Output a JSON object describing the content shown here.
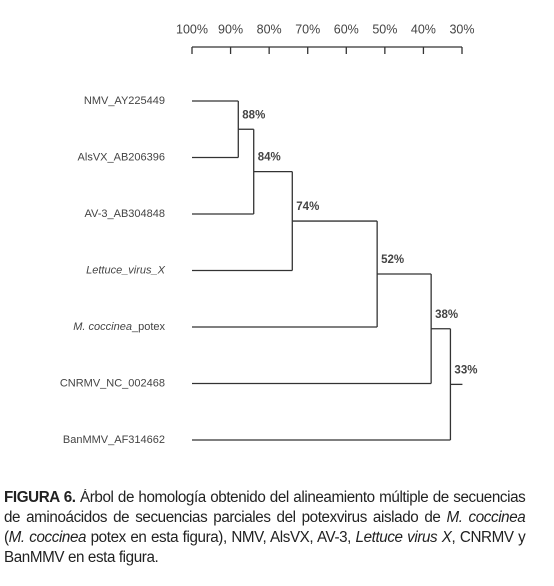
{
  "chart_data": {
    "type": "dendrogram",
    "xlim": [
      100,
      30
    ],
    "xticks": [
      {
        "value": 100,
        "label": "100%"
      },
      {
        "value": 90,
        "label": "90%"
      },
      {
        "value": 80,
        "label": "80%"
      },
      {
        "value": 70,
        "label": "70%"
      },
      {
        "value": 60,
        "label": "60%"
      },
      {
        "value": 50,
        "label": "50%"
      },
      {
        "value": 40,
        "label": "40%"
      },
      {
        "value": 30,
        "label": "30%"
      }
    ],
    "leaves": [
      {
        "text": "NMV_AY225449"
      },
      {
        "text": "AlsVX_AB206396"
      },
      {
        "text": "AV-3_AB304848"
      },
      {
        "text": "Lettuce_virus_X",
        "italic": true
      },
      {
        "parts": [
          {
            "text": "M. coccinea",
            "italic": true
          },
          {
            "text": "_potex"
          }
        ]
      },
      {
        "text": "CNRMV_NC_002468"
      },
      {
        "text": "BanMMV_AF314662"
      }
    ],
    "values": [
      88,
      84,
      74,
      52,
      38,
      33
    ],
    "value_labels": [
      "88%",
      "84%",
      "74%",
      "52%",
      "38%",
      "33%"
    ],
    "color": "#333333"
  },
  "caption": [
    {
      "text": "FIGURA 6.",
      "bold": true
    },
    {
      "text": " Árbol de homología obtenido del alineamiento múltiple de secuencias de aminoácidos de secuencias parciales del potexvirus aislado de "
    },
    {
      "text": "M. coccinea",
      "italic": true
    },
    {
      "text": " ("
    },
    {
      "text": "M. coccinea",
      "italic": true
    },
    {
      "text": " potex en esta figura), NMV, AlsVX, AV-3, "
    },
    {
      "text": "Lettuce virus X",
      "italic": true
    },
    {
      "text": ", CNRMV y BanMMV en esta figura."
    }
  ]
}
